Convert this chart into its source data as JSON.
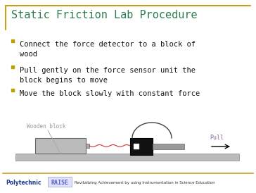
{
  "title": "Static Friction Lab Procedure",
  "title_color": "#2E7D4F",
  "background_color": "#FFFFFF",
  "accent_color": "#C8A020",
  "bullet_points": [
    "Connect the force detector to a block of\nwood",
    "Pull gently on the force sensor unit the\nblock begins to move",
    "Move the block slowly with constant force"
  ],
  "bullet_color": "#B8A000",
  "text_color": "#111111",
  "text_fontsize": 7.5,
  "title_fontsize": 11,
  "footer_text": "Revitalizing Achievement by using Instrumentation in Science Education",
  "footer_polytechnic": "Polytechnic",
  "footer_raise": "RAISE",
  "footer_poly_color": "#1A3A8A",
  "footer_raise_color": "#5566BB",
  "footer_tagline_color": "#333333",
  "wooden_block_label": "Wooden block",
  "pull_label": "Pull",
  "rail_color": "#BBBBBB",
  "rail_edge_color": "#888888",
  "block_color": "#BBBBBB",
  "block_edge_color": "#666666",
  "sensor_color": "#111111",
  "sensor_edge_color": "#000000",
  "handle_color": "#999999",
  "wire_color": "#CC3333",
  "curve_color": "#444444",
  "separator_color": "#C8A020",
  "raise_box_color": "#E0E0FF",
  "raise_box_edge": "#9999CC"
}
